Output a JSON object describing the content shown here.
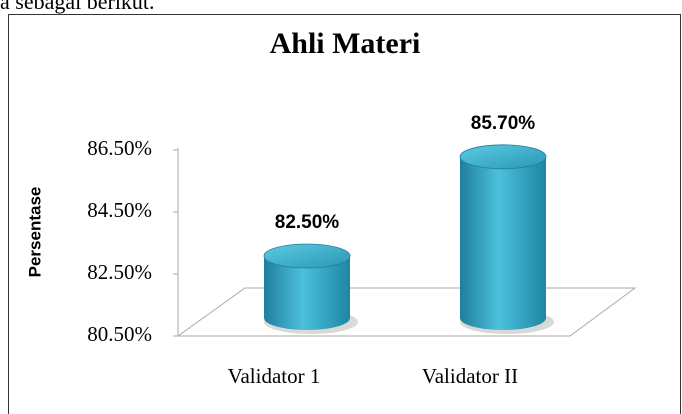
{
  "intro": "a sebagai berikut.",
  "chart_data": {
    "type": "bar",
    "title": "Ahli Materi",
    "y_label": "Persentase",
    "categories": [
      "Validator 1",
      "Validator II"
    ],
    "values": [
      82.5,
      85.7
    ],
    "value_labels": [
      "82.50%",
      "85.70%"
    ],
    "color": "#2e9cba",
    "ylim": [
      80.5,
      86.5
    ],
    "yticks": [
      {
        "value": 80.5,
        "label": "80.50%"
      },
      {
        "value": 82.5,
        "label": "82.50%"
      },
      {
        "value": 84.5,
        "label": "84.50%"
      },
      {
        "value": 86.5,
        "label": "86.50%"
      }
    ]
  }
}
